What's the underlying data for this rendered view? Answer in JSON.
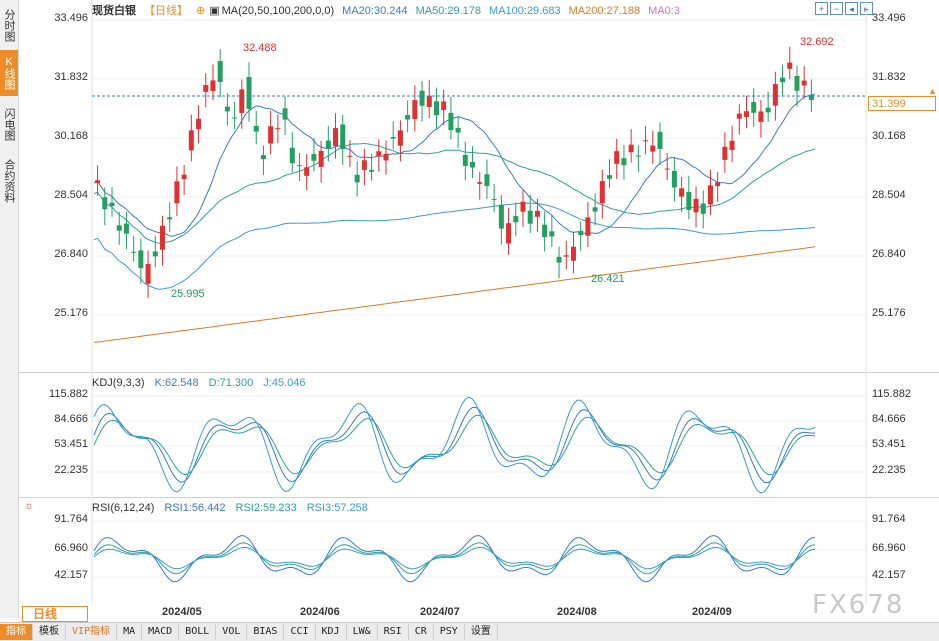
{
  "sidebar": {
    "tabs": [
      {
        "label": "分时图",
        "active": false
      },
      {
        "label": "K线图",
        "active": true
      },
      {
        "label": "闪电图",
        "active": false
      },
      {
        "label": "合约资料",
        "active": false
      }
    ]
  },
  "header": {
    "title": "现货白银",
    "period": "【日线】",
    "ma_label": "MA(20,50,100,200,0,0)",
    "ma20": "MA20:30.244",
    "ma50": "MA50:29.178",
    "ma100": "MA100:29.683",
    "ma200": "MA200:27.188",
    "ma0": "MA0:3"
  },
  "price_axis": {
    "labels": [
      "33.496",
      "31.832",
      "30.168",
      "28.504",
      "26.840",
      "25.176"
    ]
  },
  "current_price": "31.399",
  "annotations": {
    "high1": "32.488",
    "high2": "32.692",
    "low1": "25.995",
    "low2": "26.421"
  },
  "kdj": {
    "header": "KDJ(9,3,3)",
    "k": "K:62.548",
    "d": "D:71.300",
    "j": "J:45.046",
    "axis": [
      "115.882",
      "84.666",
      "53.451",
      "22.235"
    ]
  },
  "rsi": {
    "header": "RSI(6,12,24)",
    "rsi1": "RSI1:56.442",
    "rsi2": "RSI2:59.233",
    "rsi3": "RSI3:57.258",
    "axis": [
      "91.764",
      "66.960",
      "42.157"
    ]
  },
  "period_button": "日线",
  "dates": [
    "2024/05",
    "2024/06",
    "2024/07",
    "2024/08",
    "2024/09"
  ],
  "bottom_tabs": [
    "指标",
    "模板",
    "VIP指标",
    "MA",
    "MACD",
    "BOLL",
    "VOL",
    "BIAS",
    "CCI",
    "KDJ",
    "LW&",
    "RSI",
    "CR",
    "PSY",
    "设置"
  ],
  "watermark": "FX678",
  "colors": {
    "up": "#e03030",
    "down": "#22a060",
    "ma20": "#3a7ad0",
    "ma50": "#2aa59a",
    "ma100": "#3a9ad8",
    "ma200": "#e07a28",
    "accent": "#f08c28"
  }
}
